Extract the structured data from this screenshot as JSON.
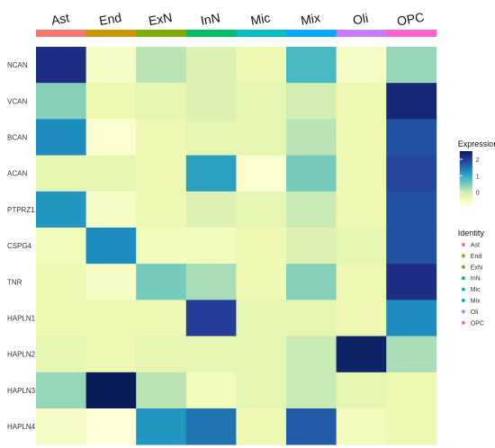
{
  "chart_data": {
    "type": "heatmap",
    "x_categories": [
      "Ast",
      "End",
      "ExN",
      "InN",
      "Mic",
      "Mix",
      "Oli",
      "OPC"
    ],
    "y_categories": [
      "NCAN",
      "VCAN",
      "BCAN",
      "ACAN",
      "PTPRZ1",
      "CSPG4",
      "TNR",
      "HAPLN1",
      "HAPLN2",
      "HAPLN3",
      "HAPLN4"
    ],
    "values": [
      [
        2.2,
        -0.6,
        0.1,
        -0.2,
        -0.4,
        0.8,
        -0.6,
        0.3
      ],
      [
        0.4,
        -0.4,
        -0.3,
        -0.2,
        -0.3,
        -0.1,
        -0.4,
        2.3
      ],
      [
        1.3,
        -0.7,
        -0.4,
        -0.3,
        -0.3,
        0.1,
        -0.4,
        1.8
      ],
      [
        -0.3,
        -0.3,
        -0.4,
        1.1,
        -0.7,
        0.5,
        -0.4,
        1.9
      ],
      [
        1.2,
        -0.6,
        -0.4,
        -0.2,
        -0.3,
        0.0,
        -0.4,
        1.8
      ],
      [
        -0.5,
        1.3,
        -0.5,
        -0.5,
        -0.4,
        -0.2,
        -0.3,
        1.8
      ],
      [
        -0.4,
        -0.6,
        0.5,
        0.2,
        -0.4,
        0.4,
        -0.4,
        2.2
      ],
      [
        -0.4,
        -0.4,
        -0.4,
        2.0,
        -0.3,
        -0.3,
        -0.4,
        1.3
      ],
      [
        -0.3,
        -0.4,
        -0.3,
        -0.3,
        -0.3,
        0.0,
        2.4,
        0.2
      ],
      [
        0.3,
        2.5,
        0.1,
        -0.5,
        -0.3,
        0.0,
        -0.3,
        -0.4
      ],
      [
        -0.6,
        -0.8,
        1.2,
        1.5,
        -0.4,
        1.7,
        -0.5,
        -0.4
      ]
    ],
    "colorbar": {
      "title": "Expression",
      "ticks": [
        "2",
        "1",
        "0"
      ],
      "tick_values": [
        2,
        1,
        0
      ],
      "range": [
        -0.8,
        2.5
      ]
    },
    "identity_legend": {
      "title": "Identity",
      "items": [
        "Ast",
        "End",
        "ExN",
        "InN",
        "Mic",
        "Mix",
        "Oli",
        "OPC"
      ]
    },
    "identity_colors": [
      "#F8766D",
      "#CD9600",
      "#7CAE00",
      "#00BE67",
      "#00BFC4",
      "#00A9FF",
      "#C77CFF",
      "#FF61CC"
    ],
    "palette": [
      "#ffffd9",
      "#edf8b1",
      "#c7e9b4",
      "#7fcdbb",
      "#41b6c4",
      "#1d91c0",
      "#225ea8",
      "#253494",
      "#081d58"
    ],
    "grid": false,
    "legend_position": "right"
  }
}
